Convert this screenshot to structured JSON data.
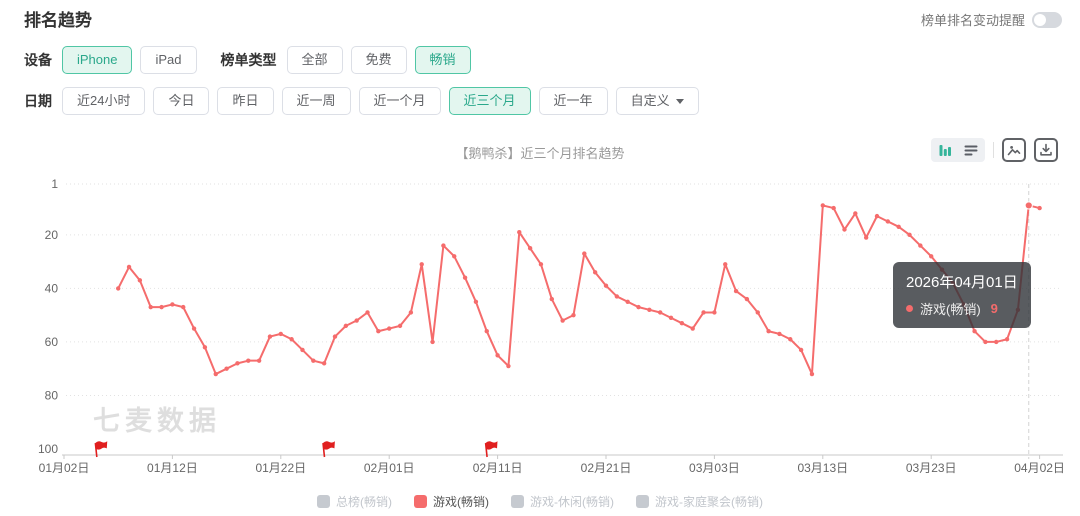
{
  "page": {
    "title": "排名趋势"
  },
  "header": {
    "alert_label": "榜单排名变动提醒",
    "alert_on": false
  },
  "filters": {
    "device": {
      "label": "设备",
      "options": [
        {
          "label": "iPhone",
          "selected": true
        },
        {
          "label": "iPad",
          "selected": false
        }
      ]
    },
    "list_type": {
      "label": "榜单类型",
      "options": [
        {
          "label": "全部",
          "selected": false
        },
        {
          "label": "免费",
          "selected": false
        },
        {
          "label": "畅销",
          "selected": true
        }
      ]
    },
    "date": {
      "label": "日期",
      "options": [
        {
          "label": "近24小时",
          "selected": false
        },
        {
          "label": "今日",
          "selected": false
        },
        {
          "label": "昨日",
          "selected": false
        },
        {
          "label": "近一周",
          "selected": false
        },
        {
          "label": "近一个月",
          "selected": false
        },
        {
          "label": "近三个月",
          "selected": true
        },
        {
          "label": "近一年",
          "selected": false
        }
      ],
      "custom_label": "自定义"
    }
  },
  "toolbar": {
    "chart_view_icon": "bar-chart-icon",
    "table_view_icon": "list-icon",
    "export_image_icon": "image-export-icon",
    "download_icon": "download-icon"
  },
  "watermark": "七麦数据",
  "tooltip": {
    "date": "2026年04月01日",
    "series": "游戏(畅销)",
    "value": "9"
  },
  "legend": [
    {
      "label": "总榜(畅销)",
      "active": false
    },
    {
      "label": "游戏(畅销)",
      "active": true,
      "color": "#f56c6c"
    },
    {
      "label": "游戏-休闲(畅销)",
      "active": false
    },
    {
      "label": "游戏-家庭聚会(畅销)",
      "active": false
    }
  ],
  "chart_data": {
    "type": "line",
    "title": "【鹅鸭杀】近三个月排名趋势",
    "y_axis": {
      "label": "rank",
      "inverted": true,
      "ticks": [
        1,
        20,
        40,
        60,
        80,
        100
      ],
      "lim": [
        1,
        100
      ]
    },
    "x_tick_labels": [
      "01月02日",
      "01月12日",
      "01月22日",
      "02月01日",
      "02月11日",
      "02月21日",
      "03月03日",
      "03月13日",
      "03月23日",
      "04月02日"
    ],
    "x_range_days": 90,
    "grid": "dotted-horizontal",
    "legend_position": "bottom",
    "series": [
      {
        "name": "游戏(畅销)",
        "color": "#f56c6c",
        "interval": "daily",
        "start_label": "01月07日",
        "first_point_day_offset": 5,
        "values": [
          40,
          32,
          37,
          47,
          47,
          46,
          47,
          55,
          62,
          72,
          70,
          68,
          67,
          67,
          58,
          57,
          59,
          63,
          67,
          68,
          58,
          54,
          52,
          49,
          56,
          55,
          54,
          49,
          31,
          60,
          24,
          28,
          36,
          45,
          56,
          65,
          69,
          19,
          25,
          31,
          44,
          52,
          50,
          27,
          34,
          39,
          43,
          45,
          47,
          48,
          49,
          51,
          53,
          55,
          49,
          49,
          31,
          41,
          44,
          49,
          56,
          57,
          59,
          63,
          72,
          9,
          10,
          18,
          12,
          21,
          13,
          15,
          17,
          20,
          24,
          28,
          33,
          38,
          46,
          56,
          60,
          60,
          59,
          48,
          9,
          10
        ]
      }
    ],
    "flag_day_offsets": [
      3,
      24,
      39
    ],
    "hover": {
      "day_offset": 89,
      "date": "2026年04月01日",
      "value": 9
    }
  }
}
